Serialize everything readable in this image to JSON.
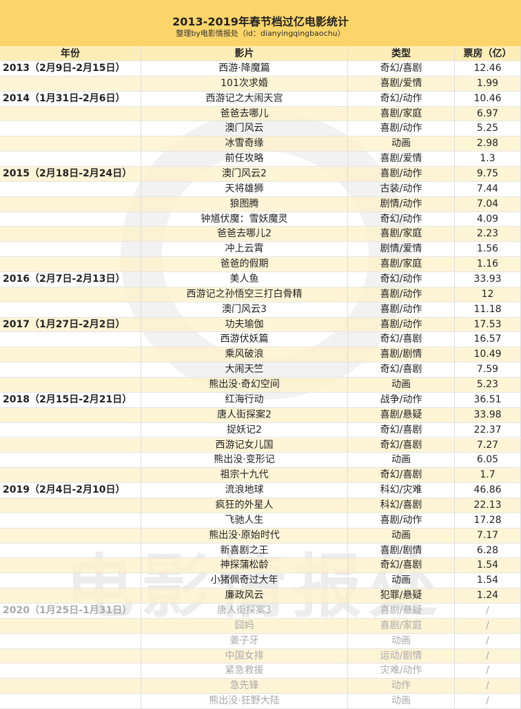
{
  "header": {
    "title": "2013-2019年春节档过亿电影统计",
    "subtitle": "整理by电影情报处（id：dianyingqingbaochu）"
  },
  "watermark": "电影情报处",
  "table": {
    "columns": [
      "年份",
      "影片",
      "类型",
      "票房（亿）"
    ],
    "groups": [
      {
        "year": "2013（2月9日-2月15日）",
        "rows": [
          [
            "西游·降魔篇",
            "奇幻/喜剧",
            12.46
          ],
          [
            "101次求婚",
            "喜剧/爱情",
            1.99
          ]
        ]
      },
      {
        "year": "2014（1月31日-2月6日）",
        "rows": [
          [
            "西游记之大闹天宫",
            "奇幻/动作",
            10.46
          ],
          [
            "爸爸去哪儿",
            "喜剧/家庭",
            6.97
          ],
          [
            "澳门风云",
            "喜剧/动作",
            5.25
          ],
          [
            "冰雪奇缘",
            "动画",
            2.98
          ],
          [
            "前任攻略",
            "喜剧/爱情",
            1.3
          ]
        ]
      },
      {
        "year": "2015（2月18日-2月24日）",
        "rows": [
          [
            "澳门风云2",
            "喜剧/动作",
            9.75
          ],
          [
            "天将雄狮",
            "古装/动作",
            7.44
          ],
          [
            "狼图腾",
            "剧情/动作",
            7.04
          ],
          [
            "钟馗伏魔：雪妖魔灵",
            "奇幻/动作",
            4.09
          ],
          [
            "爸爸去哪儿2",
            "喜剧/家庭",
            2.23
          ],
          [
            "冲上云霄",
            "剧情/爱情",
            1.56
          ],
          [
            "爸爸的假期",
            "喜剧/家庭",
            1.16
          ]
        ]
      },
      {
        "year": "2016（2月7日-2月13日）",
        "rows": [
          [
            "美人鱼",
            "奇幻/动作",
            33.93
          ],
          [
            "西游记之孙悟空三打白骨精",
            "喜剧/动作",
            12
          ],
          [
            "澳门风云3",
            "喜剧/动作",
            11.18
          ]
        ]
      },
      {
        "year": "2017（1月27日-2月2日）",
        "rows": [
          [
            "功夫瑜伽",
            "喜剧/动作",
            17.53
          ],
          [
            "西游伏妖篇",
            "奇幻/喜剧",
            16.57
          ],
          [
            "乘风破浪",
            "喜剧/剧情",
            10.49
          ],
          [
            "大闹天竺",
            "奇幻/喜剧",
            7.59
          ],
          [
            "熊出没·奇幻空间",
            "动画",
            5.23
          ]
        ]
      },
      {
        "year": "2018（2月15日-2月21日）",
        "rows": [
          [
            "红海行动",
            "战争/动作",
            36.51
          ],
          [
            "唐人街探案2",
            "喜剧/悬疑",
            33.98
          ],
          [
            "捉妖记2",
            "奇幻/喜剧",
            22.37
          ],
          [
            "西游记女儿国",
            "奇幻/喜剧",
            7.27
          ],
          [
            "熊出没·变形记",
            "动画",
            6.05
          ],
          [
            "祖宗十九代",
            "奇幻/喜剧",
            1.7
          ]
        ]
      },
      {
        "year": "2019（2月4日-2月10日）",
        "rows": [
          [
            "流浪地球",
            "科幻/灾难",
            46.86
          ],
          [
            "疯狂的外星人",
            "科幻/喜剧",
            22.13
          ],
          [
            "飞驰人生",
            "喜剧/动作",
            17.28
          ],
          [
            "熊出没·原始时代",
            "动画",
            7.17
          ],
          [
            "新喜剧之王",
            "喜剧/剧情",
            6.28
          ],
          [
            "神探蒲松龄",
            "奇幻/喜剧",
            1.54
          ],
          [
            "小猪佩奇过大年",
            "动画",
            1.54
          ],
          [
            "廉政风云",
            "犯罪/悬疑",
            1.24
          ]
        ]
      },
      {
        "year": "2020（1月25日-1月31日）",
        "rows": [
          [
            "唐人街探案3",
            "喜剧/悬疑",
            "/"
          ],
          [
            "囧妈",
            "喜剧/家庭",
            "/"
          ],
          [
            "姜子牙",
            "动画",
            "/"
          ],
          [
            "中国女排",
            "运动/剧情",
            "/"
          ],
          [
            "紧急救援",
            "灾难/动作",
            "/"
          ],
          [
            "急先锋",
            "动作",
            "/"
          ],
          [
            "熊出没·狂野大陆",
            "动画",
            "/"
          ]
        ]
      }
    ]
  }
}
